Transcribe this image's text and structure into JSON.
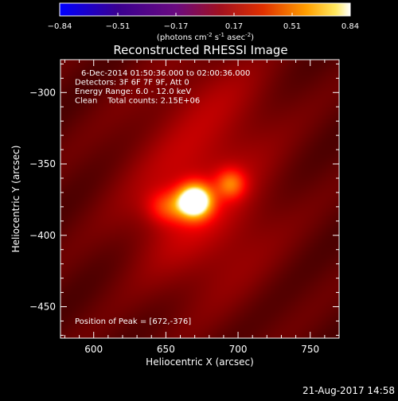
{
  "chart_data": {
    "type": "heatmap",
    "title": "Reconstructed RHESSI Image",
    "xlabel": "Heliocentric X (arcsec)",
    "ylabel": "Heliocentric Y (arcsec)",
    "xlim": [
      577,
      770
    ],
    "ylim": [
      -472,
      -277
    ],
    "x_ticks": [
      600,
      650,
      700,
      750
    ],
    "y_ticks": [
      -300,
      -350,
      -400,
      -450
    ],
    "colorbar": {
      "colormap": "ssw-hot",
      "range": [
        -0.84,
        0.84
      ],
      "tick_labels": [
        "-0.84",
        "-0.51",
        "-0.17",
        "0.17",
        "0.51",
        "0.84"
      ],
      "units_label": "(photons cm",
      "units_label_sup1": "-2",
      "units_label_mid": " s",
      "units_label_sup2": "-1",
      "units_label_mid2": " asec",
      "units_label_sup3": "-2",
      "units_label_end": ")"
    },
    "info_lines": [
      "6-Dec-2014 01:50:36.000 to 02:00:36.000",
      "Detectors: 3F 6F 7F 9F, Att 0",
      "Energy Range: 6.0 - 12.0 keV",
      "Clean    Total counts: 2.15E+06"
    ],
    "peak_label": "Position of Peak = [672,-376]",
    "sources": [
      {
        "x": 670,
        "y": -376,
        "amplitude": 1.0,
        "sigma_x": 8,
        "sigma_y": 8
      },
      {
        "x": 695,
        "y": -364,
        "amplitude": 0.35,
        "sigma_x": 7,
        "sigma_y": 7
      },
      {
        "x": 652,
        "y": -380,
        "amplitude": 0.3,
        "sigma_x": 10,
        "sigma_y": 8
      },
      {
        "x": 672,
        "y": -376,
        "amplitude": 0.22,
        "sigma_x": 35,
        "sigma_y": 45
      },
      {
        "x": 690,
        "y": -300,
        "amplitude": 0.08,
        "sigma_x": 30,
        "sigma_y": 25
      }
    ]
  },
  "footer": {
    "timestamp": "21-Aug-2017 14:58"
  }
}
